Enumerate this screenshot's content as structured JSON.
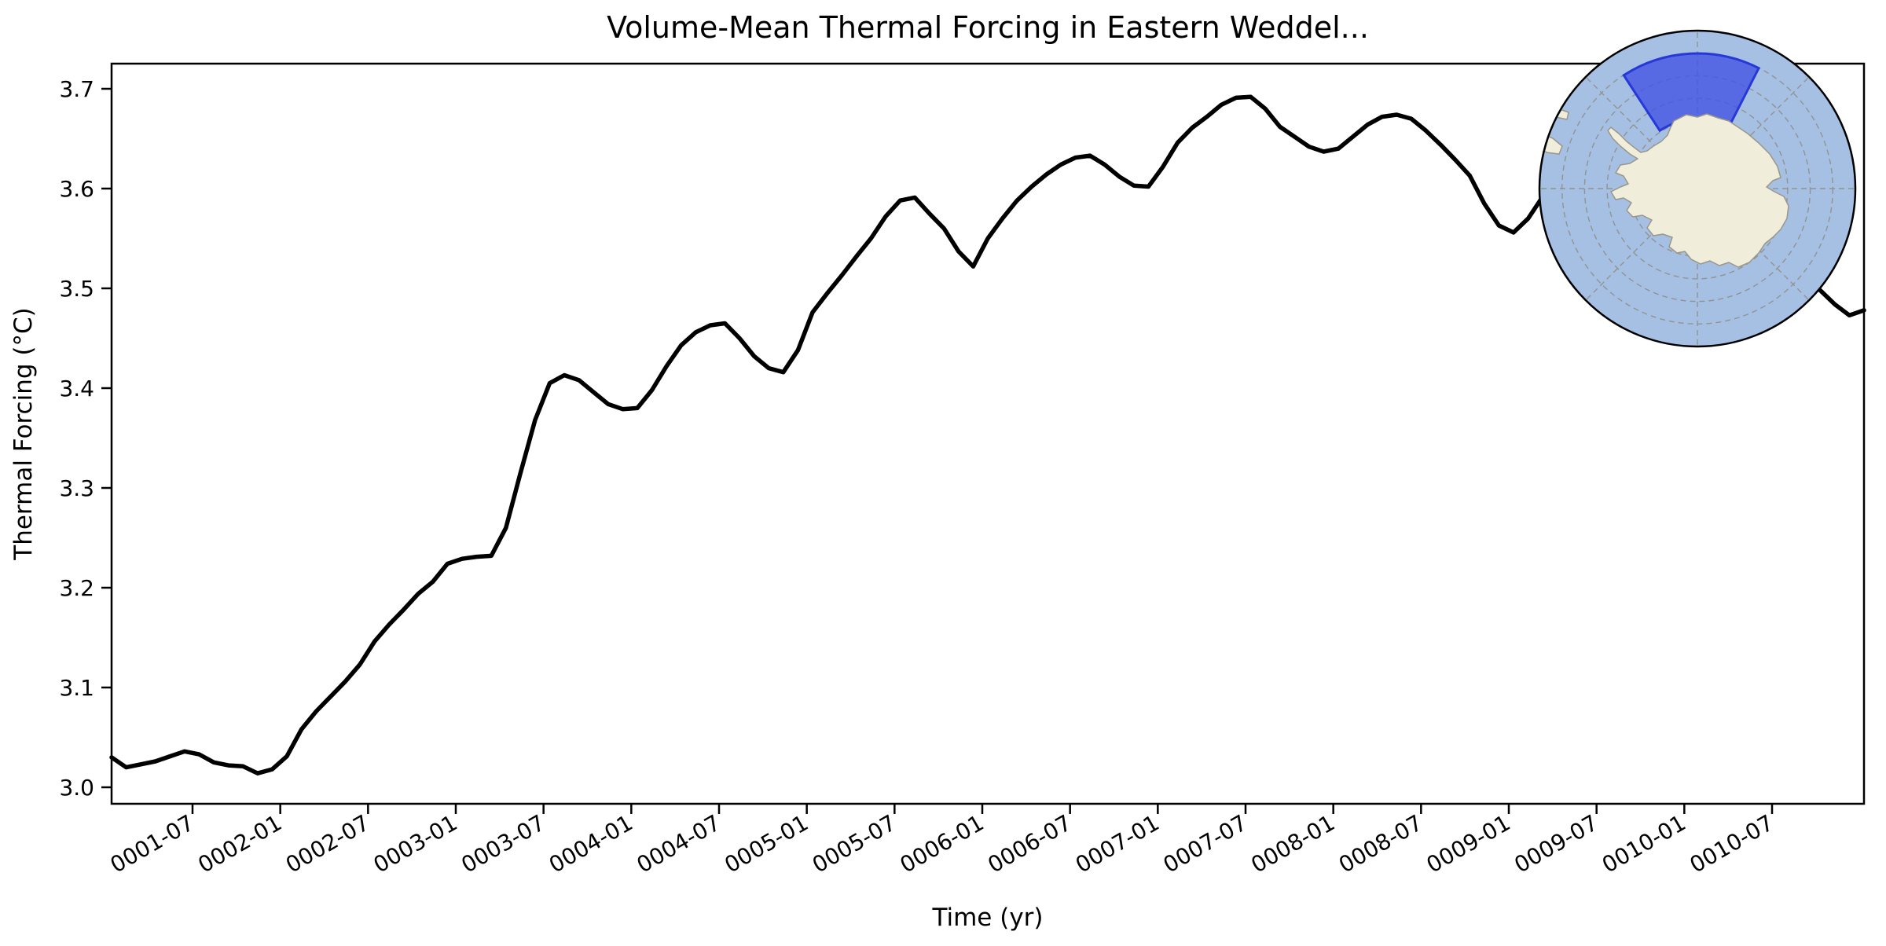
{
  "colors": {
    "background": "#ffffff",
    "line": "#000000",
    "spine": "#000000",
    "ocean": "#a5c0e3",
    "land": "#f0edda",
    "land_edge": "#9a968b",
    "region_fill": "#4656e3",
    "region_edge": "#2838d8",
    "graticule": "#8f8b82"
  },
  "inset_map": {
    "description_names": [
      "south-polar-map",
      "antarctica-landmass",
      "highlighted-region-eastern-weddell"
    ]
  },
  "chart_data": {
    "type": "line",
    "title": "Volume-Mean Thermal Forcing in Eastern Weddel...",
    "xlabel": "Time (yr)",
    "ylabel": "Thermal Forcing (°C)",
    "x_tick_labels": [
      "0001-07",
      "0002-01",
      "0002-07",
      "0003-01",
      "0003-07",
      "0004-01",
      "0004-07",
      "0005-01",
      "0005-07",
      "0006-01",
      "0006-07",
      "0007-01",
      "0007-07",
      "0008-01",
      "0008-07",
      "0009-01",
      "0009-07",
      "0010-01",
      "0010-07"
    ],
    "x_tick_rotation_deg": 30,
    "y_ticks": [
      3.0,
      3.1,
      3.2,
      3.3,
      3.4,
      3.5,
      3.6,
      3.7
    ],
    "ylim": [
      2.983,
      3.725
    ],
    "x_start": "0001-01",
    "x_step": "1 month",
    "grid": "off",
    "legend": "none",
    "series": [
      {
        "name": "volume_mean_thermal_forcing",
        "values": [
          3.03,
          3.02,
          3.023,
          3.026,
          3.031,
          3.036,
          3.033,
          3.025,
          3.022,
          3.021,
          3.014,
          3.018,
          3.031,
          3.058,
          3.076,
          3.091,
          3.106,
          3.123,
          3.146,
          3.163,
          3.178,
          3.194,
          3.206,
          3.224,
          3.229,
          3.231,
          3.232,
          3.26,
          3.315,
          3.368,
          3.405,
          3.413,
          3.408,
          3.396,
          3.384,
          3.379,
          3.38,
          3.398,
          3.422,
          3.443,
          3.456,
          3.463,
          3.465,
          3.45,
          3.432,
          3.42,
          3.416,
          3.438,
          3.476,
          3.495,
          3.513,
          3.532,
          3.55,
          3.572,
          3.588,
          3.591,
          3.575,
          3.56,
          3.537,
          3.522,
          3.55,
          3.57,
          3.588,
          3.602,
          3.614,
          3.624,
          3.631,
          3.633,
          3.624,
          3.612,
          3.603,
          3.602,
          3.622,
          3.646,
          3.661,
          3.672,
          3.684,
          3.691,
          3.692,
          3.68,
          3.662,
          3.652,
          3.642,
          3.637,
          3.64,
          3.652,
          3.664,
          3.672,
          3.674,
          3.67,
          3.658,
          3.644,
          3.629,
          3.613,
          3.585,
          3.563,
          3.556,
          3.57,
          3.592,
          3.616,
          3.636,
          3.65,
          3.658,
          3.652,
          3.638,
          3.618,
          3.596,
          3.572,
          3.548,
          3.532,
          3.521,
          3.518,
          3.524,
          3.53,
          3.526,
          3.516,
          3.506,
          3.498,
          3.484,
          3.473,
          3.478
        ]
      }
    ]
  }
}
